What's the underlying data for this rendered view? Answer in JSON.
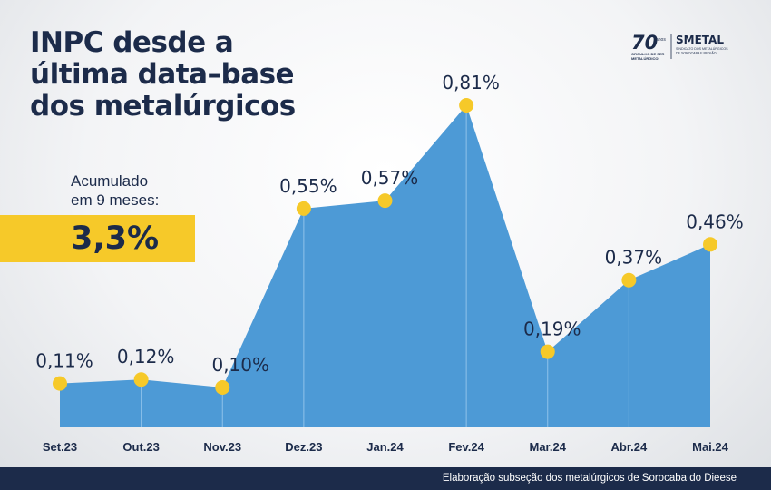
{
  "title_lines": [
    "INPC desde a",
    "última data–base",
    "dos metalúrgicos"
  ],
  "accumulated": {
    "label_lines": [
      "Acumulado",
      "em 9 meses:"
    ],
    "value": "3,3%"
  },
  "logo": {
    "anniversary": "70",
    "anniversary_suffix": "anos",
    "tagline_lines": [
      "ORGULHO DE SER",
      "METALÚRGICO!"
    ],
    "brand": "SMETAL",
    "brand_sub_lines": [
      "SINDICATO DOS METALÚRGICOS",
      "DE SOROCABA E REGIÃO"
    ]
  },
  "footer": {
    "text": "Elaboração subseção dos metalúrgicos de Sorocaba do Dieese"
  },
  "colors": {
    "area": "#4d9ad6",
    "marker": "#f6c929",
    "text": "#1c2b4a",
    "accent": "#f6c929",
    "footer": "#1c2b4a"
  },
  "chart_data": {
    "type": "area",
    "title": "INPC desde a última data–base dos metalúrgicos",
    "categories": [
      "Set.23",
      "Out.23",
      "Nov.23",
      "Dez.23",
      "Jan.24",
      "Fev.24",
      "Mar.24",
      "Abr.24",
      "Mai.24"
    ],
    "values": [
      0.11,
      0.12,
      0.1,
      0.55,
      0.57,
      0.81,
      0.19,
      0.37,
      0.46
    ],
    "labels": [
      "0,11%",
      "0,12%",
      "0,10%",
      "0,55%",
      "0,57%",
      "0,81%",
      "0,19%",
      "0,37%",
      "0,46%"
    ],
    "unit": "%",
    "ylim": [
      0,
      0.81
    ],
    "grid": false,
    "legend": "none"
  }
}
